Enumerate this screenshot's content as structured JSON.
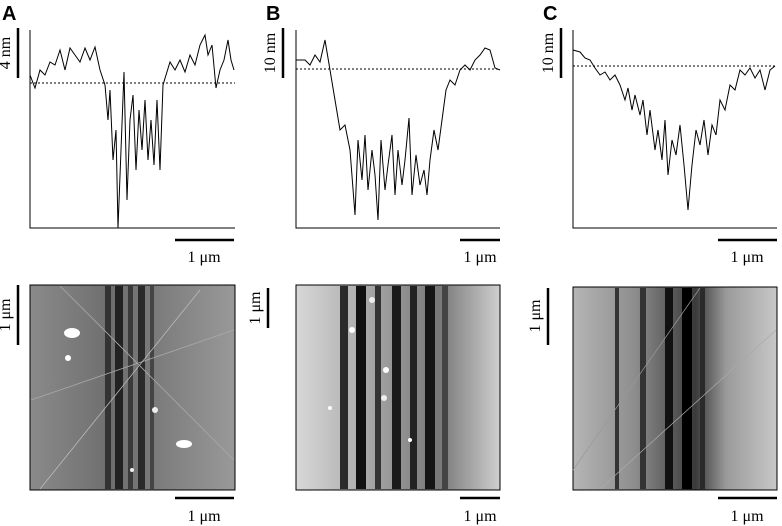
{
  "panels": [
    {
      "label": "A",
      "profile_height_scale": "4 nm",
      "profile_length_scale": "1 μm",
      "image_height_scale": "1 μm",
      "image_length_scale": "1 μm"
    },
    {
      "label": "B",
      "profile_height_scale": "10 nm",
      "profile_length_scale": "1 μm",
      "image_height_scale": "1 μm",
      "image_length_scale": "1 μm"
    },
    {
      "label": "C",
      "profile_height_scale": "10 nm",
      "profile_length_scale": "1 μm",
      "image_height_scale": "1 μm",
      "image_length_scale": "1 μm"
    }
  ]
}
